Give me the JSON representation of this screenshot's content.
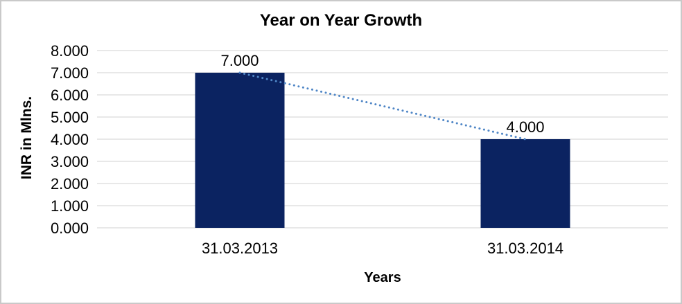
{
  "chart_data": {
    "type": "bar",
    "title": "Year on Year Growth",
    "categories": [
      "31.03.2013",
      "31.03.2014"
    ],
    "values": [
      7.0,
      4.0
    ],
    "data_labels": [
      "7.000",
      "4.000"
    ],
    "xlabel": "Years",
    "ylabel": "INR in Mlns.",
    "ylim": [
      0,
      8
    ],
    "y_tick_values": [
      0,
      1,
      2,
      3,
      4,
      5,
      6,
      7,
      8
    ],
    "y_tick_labels": [
      "0.000",
      "1.000",
      "2.000",
      "3.000",
      "4.000",
      "5.000",
      "6.000",
      "7.000",
      "8.000"
    ],
    "grid": true,
    "legend": "none",
    "trendline": {
      "type": "linear",
      "style": "dotted",
      "points": [
        [
          0,
          7.0
        ],
        [
          1,
          4.0
        ]
      ]
    },
    "colors": {
      "bar": "#0b2361",
      "trendline": "#4f86c6",
      "gridline": "#d9d9d9",
      "text": "#000000",
      "frame_border": "#c9c9c9",
      "background": "#ffffff"
    }
  }
}
